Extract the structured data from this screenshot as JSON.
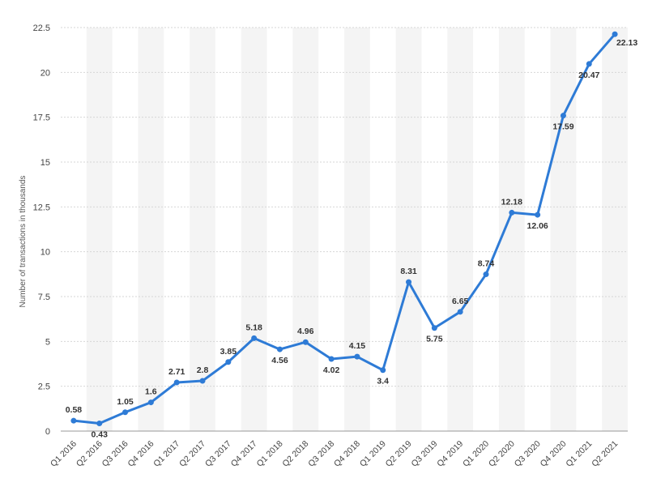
{
  "chart_data": {
    "type": "line",
    "title": "",
    "xlabel": "",
    "ylabel": "Number of transactions in thousands",
    "ylim": [
      0,
      22.5
    ],
    "yticks": [
      0,
      2.5,
      5,
      7.5,
      10,
      12.5,
      15,
      17.5,
      20,
      22.5
    ],
    "ytick_labels": [
      "0",
      "2.5",
      "5",
      "7.5",
      "10",
      "12.5",
      "15",
      "17.5",
      "20",
      "22.5"
    ],
    "grid": true,
    "legend": "none",
    "categories": [
      "Q1 2016",
      "Q2 2016",
      "Q3 2016",
      "Q4 2016",
      "Q1 2017",
      "Q2 2017",
      "Q3 2017",
      "Q4 2017",
      "Q1 2018",
      "Q2 2018",
      "Q3 2018",
      "Q4 2018",
      "Q1 2019",
      "Q2 2019",
      "Q3 2019",
      "Q4 2019",
      "Q1 2020",
      "Q2 2020",
      "Q3 2020",
      "Q4 2020",
      "Q1 2021",
      "Q2 2021"
    ],
    "series": [
      {
        "values": [
          0.58,
          0.43,
          1.05,
          1.6,
          2.71,
          2.8,
          3.85,
          5.18,
          4.56,
          4.96,
          4.02,
          4.15,
          3.4,
          8.31,
          5.75,
          6.65,
          8.74,
          12.18,
          12.06,
          17.59,
          20.47,
          22.13
        ],
        "data_labels": [
          "0.58",
          "0.43",
          "1.05",
          "1.6",
          "2.71",
          "2.8",
          "3.85",
          "5.18",
          "4.56",
          "4.96",
          "4.02",
          "4.15",
          "3.4",
          "8.31",
          "5.75",
          "6.65",
          "8.74",
          "12.18",
          "12.06",
          "17.59",
          "20.47",
          "22.13"
        ]
      }
    ],
    "colors": {
      "line": "#2e7bd6",
      "band": "#f4f4f4",
      "grid": "#d6d6d6"
    }
  }
}
